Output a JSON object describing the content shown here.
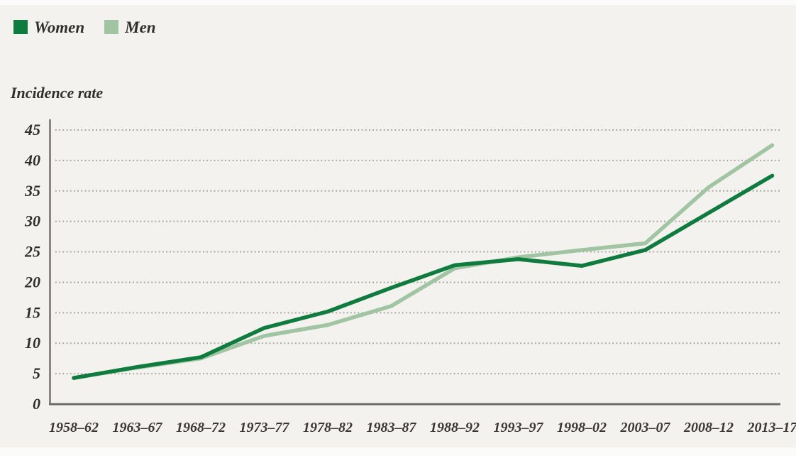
{
  "figure": {
    "y_axis_title": "Incidence rate"
  },
  "chart_data": {
    "type": "line",
    "title": "",
    "xlabel": "",
    "ylabel": "Incidence rate",
    "ylim": [
      0,
      45
    ],
    "yticks": [
      0,
      5,
      10,
      15,
      20,
      25,
      30,
      35,
      40,
      45
    ],
    "grid": "horizontal-dotted",
    "legend_position": "top-left",
    "categories": [
      "1958–62",
      "1963–67",
      "1968–72",
      "1973–77",
      "1978–82",
      "1983–87",
      "1988–92",
      "1993–97",
      "1998–02",
      "2003–07",
      "2008–12",
      "2013–17"
    ],
    "series": [
      {
        "name": "Women",
        "color": "#0f7b3e",
        "values": [
          4.3,
          6.1,
          7.7,
          12.5,
          15.2,
          19.1,
          22.8,
          23.8,
          22.7,
          25.3,
          31.4,
          37.5
        ]
      },
      {
        "name": "Men",
        "color": "#a1c5a3",
        "values": [
          4.3,
          6.0,
          7.5,
          11.2,
          13.0,
          16.1,
          22.3,
          24.1,
          25.3,
          26.4,
          35.6,
          42.5
        ]
      }
    ],
    "colors": {
      "background": "#f3f2ee",
      "axis": "#74726b",
      "gridline": "#a5a39c",
      "tick_text": "#2f2d29"
    }
  }
}
